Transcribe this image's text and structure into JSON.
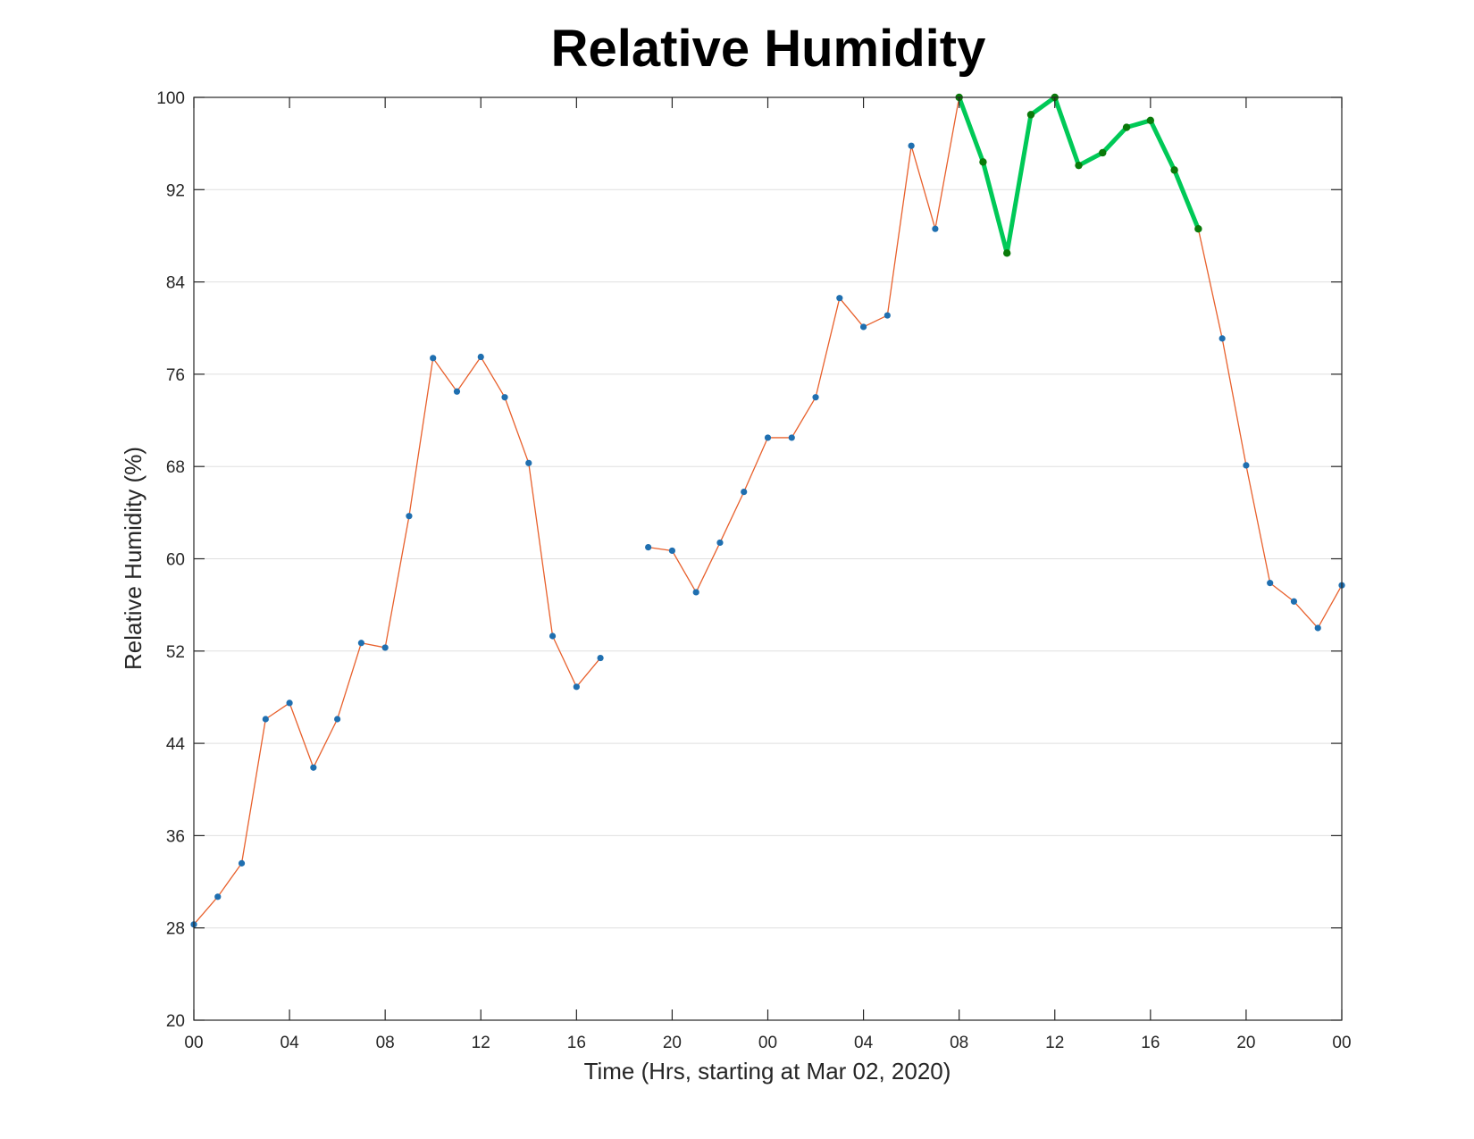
{
  "chart_data": {
    "type": "line",
    "title": "Relative Humidity",
    "xlabel": "Time (Hrs, starting at Mar 02, 2020)",
    "ylabel": "Relative Humidity (%)",
    "xlim": [
      0,
      48
    ],
    "ylim": [
      20,
      100
    ],
    "grid": "horizontal",
    "x_ticks": [
      0,
      4,
      8,
      12,
      16,
      20,
      24,
      28,
      32,
      36,
      40,
      44,
      48
    ],
    "x_tick_labels": [
      "00",
      "04",
      "08",
      "12",
      "16",
      "20",
      "00",
      "04",
      "08",
      "12",
      "16",
      "20",
      "00"
    ],
    "y_ticks": [
      20,
      28,
      36,
      44,
      52,
      60,
      68,
      76,
      84,
      92,
      100
    ],
    "series": [
      {
        "line_color": "#e8602c",
        "marker_color": "#1f6fb0",
        "x": [
          0,
          1,
          2,
          3,
          4,
          5,
          6,
          7,
          8,
          9,
          10,
          11,
          12,
          13,
          14,
          15,
          16,
          17,
          18,
          19,
          20,
          21,
          22,
          23,
          24,
          25,
          26,
          27,
          28,
          29,
          30,
          31,
          32,
          33,
          34,
          35,
          36,
          37,
          38,
          39,
          40,
          41,
          42,
          43,
          44,
          45,
          46,
          47,
          48
        ],
        "y": [
          28.3,
          30.7,
          33.6,
          46.1,
          47.5,
          41.9,
          46.1,
          52.7,
          52.3,
          63.7,
          77.4,
          74.5,
          77.5,
          74.0,
          68.3,
          53.3,
          48.9,
          51.4,
          null,
          61.0,
          60.7,
          57.1,
          61.4,
          65.8,
          70.5,
          70.5,
          74.0,
          82.6,
          80.1,
          81.1,
          95.8,
          88.6,
          100.0,
          94.4,
          86.5,
          98.5,
          100.0,
          94.1,
          95.2,
          97.4,
          98.0,
          93.7,
          88.6,
          79.1,
          68.1,
          57.9,
          56.3,
          54.0,
          57.7
        ]
      },
      {
        "line_color": "#00c957",
        "marker_color": "#0a7a0a",
        "x": [
          32,
          33,
          34,
          35,
          36,
          37,
          38,
          39,
          40,
          41,
          42
        ],
        "y": [
          100.0,
          94.4,
          86.5,
          98.5,
          100.0,
          94.1,
          95.2,
          97.4,
          98.0,
          93.7,
          88.6
        ]
      }
    ]
  }
}
